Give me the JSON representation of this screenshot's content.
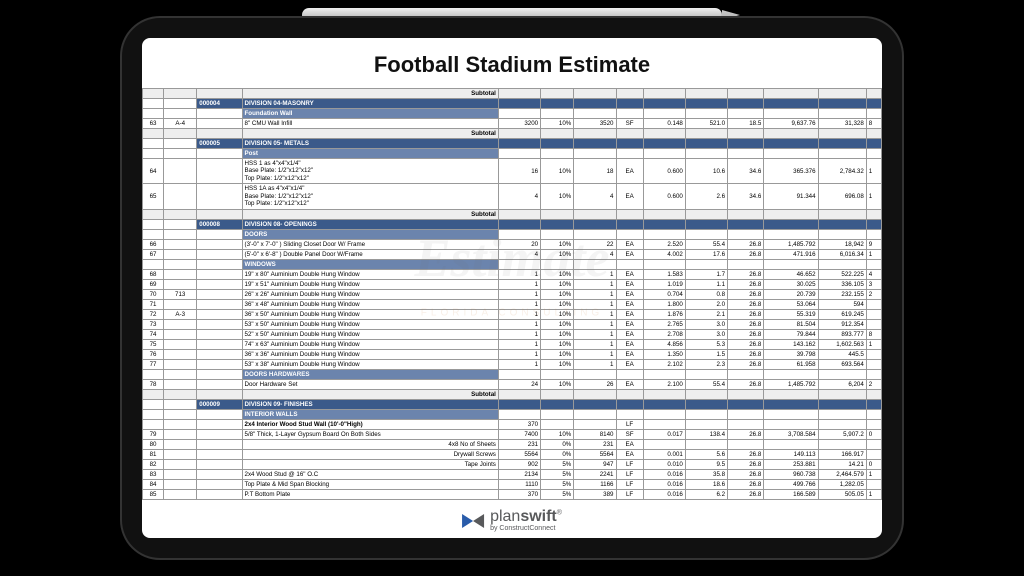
{
  "title": "Football Stadium Estimate",
  "watermark": "Estimate",
  "watermark_sub": "FLORIDA  CONSULTING",
  "logo": {
    "main_light": "plan",
    "main_bold": "swift",
    "reg": "®",
    "sub": "by ConstructConnect"
  },
  "subtotal_label": "Subtotal",
  "colors": {
    "division_bg": "#3b5a8a",
    "subhead_bg": "#6b84ad",
    "page_bg": "#ffffff",
    "frame_bg": "#000000"
  },
  "rows": [
    {
      "t": "subtotal"
    },
    {
      "t": "division",
      "code": "000004",
      "desc": "DIVISION 04-MASONRY"
    },
    {
      "t": "subhead",
      "desc": "Foundation Wall"
    },
    {
      "t": "data",
      "rn": "63",
      "ref": "A-4",
      "desc": "8\" CMU Wall Infill",
      "q1": "3200",
      "pct": "10%",
      "q2": "3520",
      "u": "SF",
      "r": "0.148",
      "a1": "521.0",
      "lab": "18.5",
      "a2": "9,637.76",
      "a3": "31,328",
      "ex": "8"
    },
    {
      "t": "subtotal"
    },
    {
      "t": "division",
      "code": "000005",
      "desc": "DIVISION 05- METALS"
    },
    {
      "t": "subhead",
      "desc": "Post"
    },
    {
      "t": "data",
      "rn": "64",
      "desc": "HSS 1  as 4\"x4\"x1/4\"\nBase Plate: 1/2\"x12\"x12\"\nTop Plate: 1/2\"x12\"x12\"",
      "q1": "16",
      "pct": "10%",
      "q2": "18",
      "u": "EA",
      "r": "0.600",
      "a1": "10.6",
      "lab": "34.6",
      "a2": "365.376",
      "a3": "2,784.32",
      "ex": "1"
    },
    {
      "t": "data",
      "rn": "65",
      "desc": "HSS 1A  as 4\"x4\"x1/4\"\nBase Plate: 1/2\"x12\"x12\"\nTop Plate: 1/2\"x12\"x12\"",
      "q1": "4",
      "pct": "10%",
      "q2": "4",
      "u": "EA",
      "r": "0.600",
      "a1": "2.6",
      "lab": "34.6",
      "a2": "91.344",
      "a3": "696.08",
      "ex": "1"
    },
    {
      "t": "subtotal"
    },
    {
      "t": "division",
      "code": "000008",
      "desc": "DIVISION 08- OPENINGS"
    },
    {
      "t": "subhead",
      "desc": "DOORS"
    },
    {
      "t": "data",
      "rn": "66",
      "desc": "(3'-0\" x 7'-0\" ) Sliding Closet Door W/ Frame",
      "q1": "20",
      "pct": "10%",
      "q2": "22",
      "u": "EA",
      "r": "2.520",
      "a1": "55.4",
      "lab": "26.8",
      "a2": "1,485.792",
      "a3": "18,942",
      "ex": "9"
    },
    {
      "t": "data",
      "rn": "67",
      "desc": "(5'-0\" x 6'-8\" ) Double Panel Door W/Frame",
      "q1": "4",
      "pct": "10%",
      "q2": "4",
      "u": "EA",
      "r": "4.002",
      "a1": "17.6",
      "lab": "26.8",
      "a2": "471.916",
      "a3": "6,016.34",
      "ex": "1"
    },
    {
      "t": "subhead",
      "desc": "WINDOWS"
    },
    {
      "t": "data",
      "rn": "68",
      "desc": "19\" x 80\" Auminium Double Hung Window",
      "q1": "1",
      "pct": "10%",
      "q2": "1",
      "u": "EA",
      "r": "1.583",
      "a1": "1.7",
      "lab": "26.8",
      "a2": "46.652",
      "a3": "522.225",
      "ex": "4"
    },
    {
      "t": "data",
      "rn": "69",
      "desc": "19\" x 51\" Auminium Double Hung Window",
      "q1": "1",
      "pct": "10%",
      "q2": "1",
      "u": "EA",
      "r": "1.019",
      "a1": "1.1",
      "lab": "26.8",
      "a2": "30.025",
      "a3": "336.105",
      "ex": "3"
    },
    {
      "t": "data",
      "rn": "70",
      "ref": "713",
      "desc": "26\" x 26\" Auminium Double Hung Window",
      "q1": "1",
      "pct": "10%",
      "q2": "1",
      "u": "EA",
      "r": "0.704",
      "a1": "0.8",
      "lab": "26.8",
      "a2": "20.739",
      "a3": "232.155",
      "ex": "2"
    },
    {
      "t": "data",
      "rn": "71",
      "desc": "36\" x 48\" Auminium Double Hung Window",
      "q1": "1",
      "pct": "10%",
      "q2": "1",
      "u": "EA",
      "r": "1.800",
      "a1": "2.0",
      "lab": "26.8",
      "a2": "53.064",
      "a3": "594",
      "ex": ""
    },
    {
      "t": "data",
      "rn": "72",
      "ref": "A-3",
      "desc": "36\" x 50\" Auminium Double Hung Window",
      "q1": "1",
      "pct": "10%",
      "q2": "1",
      "u": "EA",
      "r": "1.876",
      "a1": "2.1",
      "lab": "26.8",
      "a2": "55.319",
      "a3": "619.245",
      "ex": ""
    },
    {
      "t": "data",
      "rn": "73",
      "desc": "53\" x 50\" Auminium Double Hung Window",
      "q1": "1",
      "pct": "10%",
      "q2": "1",
      "u": "EA",
      "r": "2.765",
      "a1": "3.0",
      "lab": "26.8",
      "a2": "81.504",
      "a3": "912.354",
      "ex": ""
    },
    {
      "t": "data",
      "rn": "74",
      "desc": "52\" x 50\" Auminium Double Hung Window",
      "q1": "1",
      "pct": "10%",
      "q2": "1",
      "u": "EA",
      "r": "2.708",
      "a1": "3.0",
      "lab": "26.8",
      "a2": "79.844",
      "a3": "893.777",
      "ex": "8"
    },
    {
      "t": "data",
      "rn": "75",
      "desc": "74\" x 63\" Auminium Double Hung Window",
      "q1": "1",
      "pct": "10%",
      "q2": "1",
      "u": "EA",
      "r": "4.856",
      "a1": "5.3",
      "lab": "26.8",
      "a2": "143.162",
      "a3": "1,602.563",
      "ex": "1"
    },
    {
      "t": "data",
      "rn": "76",
      "desc": "36\" x 36\" Auminium Double Hung Window",
      "q1": "1",
      "pct": "10%",
      "q2": "1",
      "u": "EA",
      "r": "1.350",
      "a1": "1.5",
      "lab": "26.8",
      "a2": "39.798",
      "a3": "445.5",
      "ex": ""
    },
    {
      "t": "data",
      "rn": "77",
      "desc": "53\" x 38\" Auminium Double Hung Window",
      "q1": "1",
      "pct": "10%",
      "q2": "1",
      "u": "EA",
      "r": "2.102",
      "a1": "2.3",
      "lab": "26.8",
      "a2": "61.958",
      "a3": "693.564",
      "ex": ""
    },
    {
      "t": "subhead",
      "desc": "DOORS HARDWARES"
    },
    {
      "t": "data",
      "rn": "78",
      "desc": "Door Hardware Set",
      "q1": "24",
      "pct": "10%",
      "q2": "26",
      "u": "EA",
      "r": "2.100",
      "a1": "55.4",
      "lab": "26.8",
      "a2": "1,485.792",
      "a3": "6,204",
      "ex": "2"
    },
    {
      "t": "subtotal"
    },
    {
      "t": "division",
      "code": "000009",
      "desc": "DIVISION 09- FINISHES"
    },
    {
      "t": "subhead",
      "desc": "INTERIOR WALLS"
    },
    {
      "t": "data",
      "desc": "2x4 Interior Wood Stud Wall (10'-0\"High)",
      "q1": "370",
      "u": "LF",
      "bold": true
    },
    {
      "t": "data",
      "rn": "79",
      "desc": "5/8\" Thick, 1-Layer Gypsum Board On Both Sides",
      "q1": "7400",
      "pct": "10%",
      "q2": "8140",
      "u": "SF",
      "r": "0.017",
      "a1": "138.4",
      "lab": "26.8",
      "a2": "3,708.584",
      "a3": "5,907.2",
      "ex": "0"
    },
    {
      "t": "data",
      "rn": "80",
      "desc": "4x8 No of  Sheets",
      "right": true,
      "q1": "231",
      "pct": "0%",
      "q2": "231",
      "u": "EA"
    },
    {
      "t": "data",
      "rn": "81",
      "desc": "Drywall Screws",
      "right": true,
      "q1": "5564",
      "pct": "0%",
      "q2": "5564",
      "u": "EA",
      "r": "0.001",
      "a1": "5.6",
      "lab": "26.8",
      "a2": "149.113",
      "a3": "166.917",
      "ex": ""
    },
    {
      "t": "data",
      "rn": "82",
      "desc": "Tape Joints",
      "right": true,
      "q1": "902",
      "pct": "5%",
      "q2": "947",
      "u": "LF",
      "r": "0.010",
      "a1": "9.5",
      "lab": "26.8",
      "a2": "253.881",
      "a3": "14.21",
      "ex": "0"
    },
    {
      "t": "data",
      "rn": "83",
      "desc": "2x4 Wood Stud @ 16\" O.C",
      "q1": "2134",
      "pct": "5%",
      "q2": "2241",
      "u": "LF",
      "r": "0.016",
      "a1": "35.8",
      "lab": "26.8",
      "a2": "960.738",
      "a3": "2,464.579",
      "ex": "1"
    },
    {
      "t": "data",
      "rn": "84",
      "desc": "Top Plate & Mid Span Blocking",
      "q1": "1110",
      "pct": "5%",
      "q2": "1166",
      "u": "LF",
      "r": "0.016",
      "a1": "18.6",
      "lab": "26.8",
      "a2": "499.766",
      "a3": "1,282.05",
      "ex": ""
    },
    {
      "t": "data",
      "rn": "85",
      "desc": "P.T Bottom Plate",
      "q1": "370",
      "pct": "5%",
      "q2": "389",
      "u": "LF",
      "r": "0.016",
      "a1": "6.2",
      "lab": "26.8",
      "a2": "166.589",
      "a3": "505.05",
      "ex": "1"
    }
  ]
}
